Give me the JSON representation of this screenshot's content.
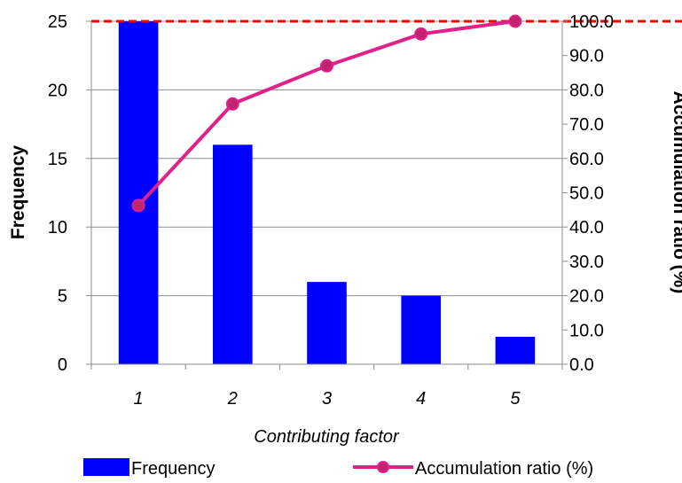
{
  "chart_data": {
    "type": "bar",
    "title": "",
    "categories": [
      "1",
      "2",
      "3",
      "4",
      "5"
    ],
    "series": [
      {
        "name": "Frequency",
        "type": "bar",
        "axis": "left",
        "values": [
          25,
          16,
          6,
          5,
          2
        ],
        "color": "#0000ff"
      },
      {
        "name": "Accumulation ratio (%)",
        "type": "line",
        "axis": "right",
        "values": [
          46.3,
          75.9,
          87.0,
          96.3,
          100.0
        ],
        "color": "#e0218a"
      }
    ],
    "xlabel": "Contributing factor",
    "ylabel": "Frequency",
    "y2label": "Accumulation ratio (%)",
    "ylim": [
      0,
      25
    ],
    "yticks": [
      "0",
      "5",
      "10",
      "15",
      "20",
      "25"
    ],
    "y2lim": [
      0,
      100
    ],
    "y2ticks": [
      "0.0",
      "10.0",
      "20.0",
      "30.0",
      "40.0",
      "50.0",
      "60.0",
      "70.0",
      "80.0",
      "90.0",
      "100.0"
    ],
    "reference_line": {
      "value": 100,
      "axis": "right",
      "color": "#ff0000",
      "style": "dashed"
    },
    "grid": true,
    "legend_position": "bottom"
  }
}
